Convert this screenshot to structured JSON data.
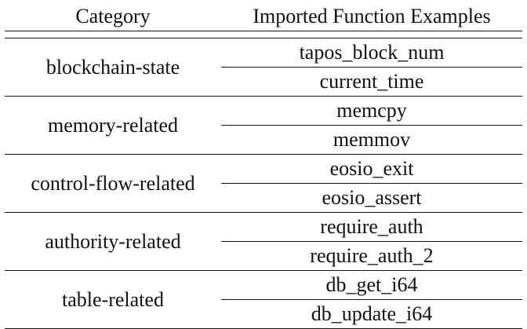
{
  "table": {
    "headers": {
      "category": "Category",
      "examples": "Imported Function Examples"
    },
    "groups": [
      {
        "category": "blockchain-state",
        "examples": [
          "tapos_block_num",
          "current_time"
        ]
      },
      {
        "category": "memory-related",
        "examples": [
          "memcpy",
          "memmov"
        ]
      },
      {
        "category": "control-flow-related",
        "examples": [
          "eosio_exit",
          "eosio_assert"
        ]
      },
      {
        "category": "authority-related",
        "examples": [
          "require_auth",
          "require_auth_2"
        ]
      },
      {
        "category": "table-related",
        "examples": [
          "db_get_i64",
          "db_update_i64"
        ]
      }
    ]
  }
}
